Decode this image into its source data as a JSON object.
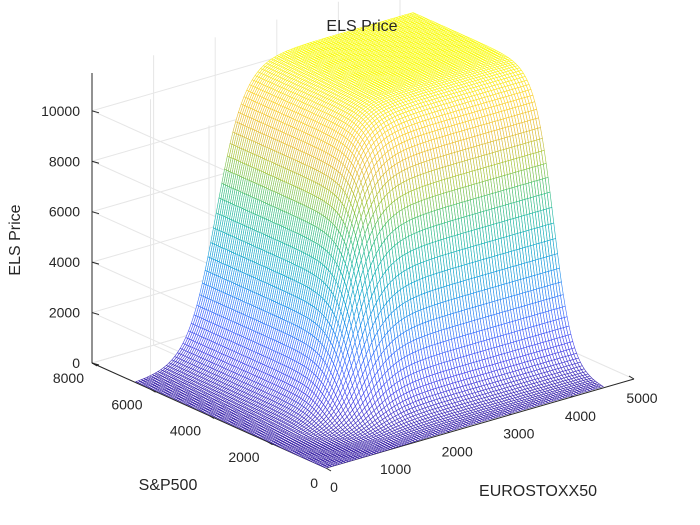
{
  "chart_data": {
    "type": "surface",
    "title": "ELS Price",
    "xlabel": "EUROSTOXX50",
    "ylabel": "S&P500",
    "zlabel": "ELS Price",
    "xlim": [
      0,
      5000
    ],
    "ylim": [
      0,
      8000
    ],
    "zlim": [
      0,
      11500
    ],
    "xticks": [
      "0",
      "1000",
      "2000",
      "3000",
      "4000",
      "5000"
    ],
    "yticks": [
      "0",
      "2000",
      "4000",
      "6000",
      "8000"
    ],
    "zticks": [
      "0",
      "2000",
      "4000",
      "6000",
      "8000",
      "10000"
    ],
    "xtick_values": [
      0,
      1000,
      2000,
      3000,
      4000,
      5000
    ],
    "ytick_values": [
      0,
      2000,
      4000,
      6000,
      8000
    ],
    "ztick_values": [
      0,
      2000,
      4000,
      6000,
      8000,
      10000
    ],
    "surface": {
      "x_range": [
        0,
        4500
      ],
      "y_range": [
        0,
        6500
      ],
      "plateau": 11500,
      "x_midpoint": 1300,
      "x_steepness": 230,
      "y_midpoint": 1700,
      "y_steepness": 320,
      "grid_lines": 100
    },
    "grid": true,
    "colormap": [
      "#3e26a8",
      "#4746eb",
      "#3e68fe",
      "#2489f2",
      "#13a2d4",
      "#1ab5ac",
      "#3dc079",
      "#9fc53a",
      "#e5bb37",
      "#fcd02e",
      "#f9fb14"
    ]
  }
}
